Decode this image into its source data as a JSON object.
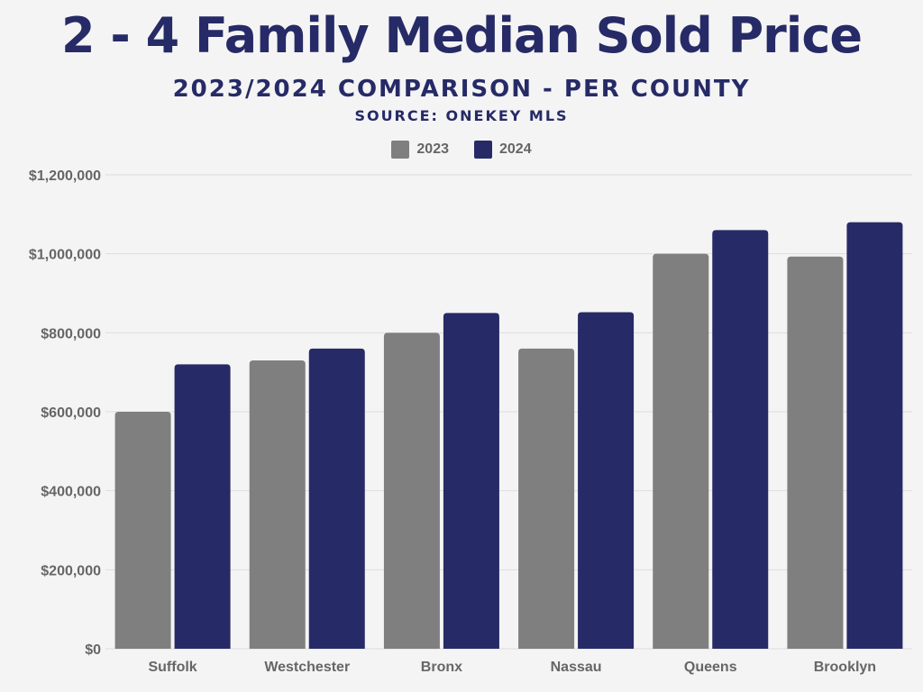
{
  "chart_data": {
    "type": "bar",
    "title": "2 - 4 Family Median Sold Price",
    "subtitle": "2023/2024 COMPARISON - PER COUNTY",
    "source": "SOURCE: ONEKEY MLS",
    "categories": [
      "Suffolk",
      "Westchester",
      "Bronx",
      "Nassau",
      "Queens",
      "Brooklyn"
    ],
    "series": [
      {
        "name": "2023",
        "color": "#7f7f7f",
        "values": [
          600000,
          730000,
          800000,
          760000,
          1000000,
          993000
        ]
      },
      {
        "name": "2024",
        "color": "#262a66",
        "values": [
          720000,
          760000,
          850000,
          852000,
          1060000,
          1080000
        ]
      }
    ],
    "yticks": [
      0,
      200000,
      400000,
      600000,
      800000,
      1000000,
      1200000
    ],
    "ytick_labels": [
      "$0",
      "$200,000",
      "$400,000",
      "$600,000",
      "$800,000",
      "$1,000,000",
      "$1,200,000"
    ],
    "ylim": [
      0,
      1200000
    ],
    "xlabel": "",
    "ylabel": "",
    "grid": true,
    "legend_position": "top-center"
  }
}
